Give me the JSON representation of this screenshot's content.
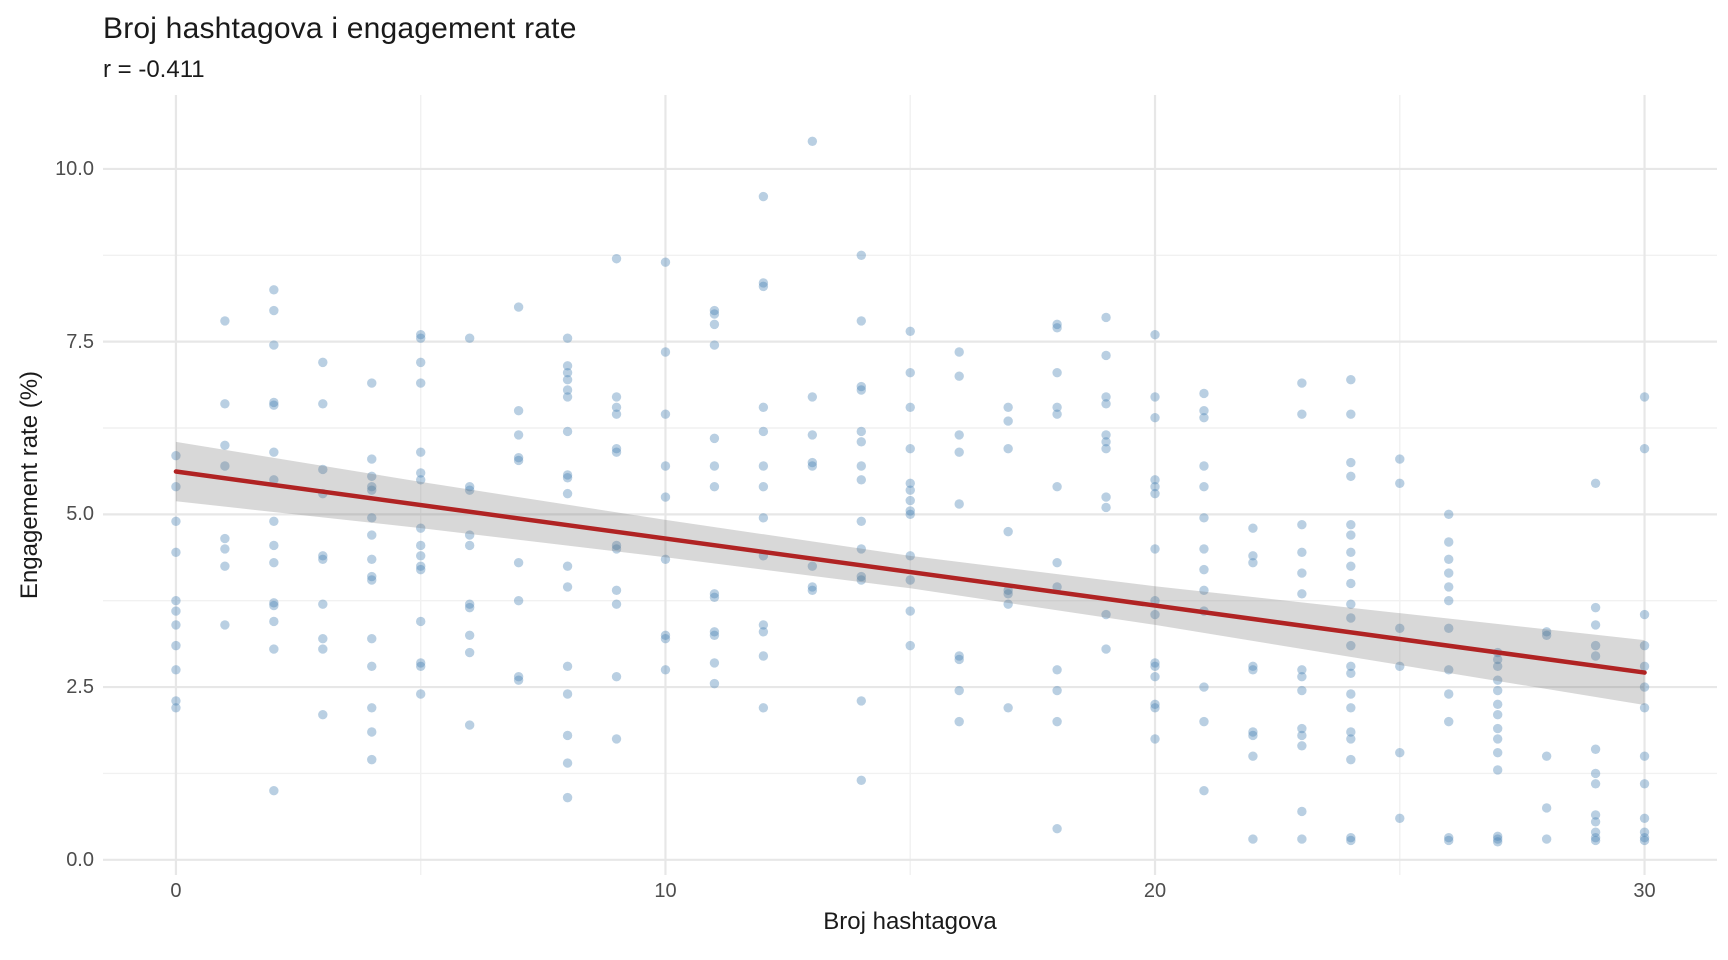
{
  "chart_data": {
    "type": "scatter",
    "title": "Broj hashtagova i engagement rate",
    "subtitle": "r = -0.411",
    "xlabel": "Broj hashtagova",
    "ylabel": "Engagement rate (%)",
    "correlation_r": -0.411,
    "legend": "none",
    "grid": true,
    "x_range": [
      -1.49,
      31.48
    ],
    "y_range": [
      -0.22,
      11.07
    ],
    "x_ticks": [
      {
        "v": 0,
        "label": "0"
      },
      {
        "v": 10,
        "label": "10"
      },
      {
        "v": 20,
        "label": "20"
      },
      {
        "v": 30,
        "label": "30"
      }
    ],
    "x_minor_ticks": [
      5,
      15,
      25
    ],
    "y_ticks": [
      {
        "v": 0,
        "label": "0.0"
      },
      {
        "v": 2.5,
        "label": "2.5"
      },
      {
        "v": 5,
        "label": "5.0"
      },
      {
        "v": 7.5,
        "label": "7.5"
      },
      {
        "v": 10,
        "label": "10.0"
      }
    ],
    "y_minor_ticks": [
      1.25,
      3.75,
      6.25,
      8.75
    ],
    "trend_line": {
      "x": [
        0,
        30
      ],
      "y": [
        5.62,
        2.71
      ]
    },
    "confidence_band": {
      "x": [
        0,
        5,
        10,
        15,
        20,
        25,
        30
      ],
      "upper": [
        6.05,
        5.47,
        4.92,
        4.4,
        3.96,
        3.57,
        3.18
      ],
      "lower": [
        5.19,
        4.8,
        4.38,
        3.93,
        3.4,
        2.82,
        2.24
      ]
    },
    "points": [
      [
        0,
        5.85
      ],
      [
        0,
        5.4
      ],
      [
        0,
        4.9
      ],
      [
        0,
        4.45
      ],
      [
        0,
        3.75
      ],
      [
        0,
        3.6
      ],
      [
        0,
        3.4
      ],
      [
        0,
        3.1
      ],
      [
        0,
        2.75
      ],
      [
        0,
        2.3
      ],
      [
        0,
        2.2
      ],
      [
        1,
        7.8
      ],
      [
        1,
        6.6
      ],
      [
        1,
        6.0
      ],
      [
        1,
        5.7
      ],
      [
        1,
        4.65
      ],
      [
        1,
        4.5
      ],
      [
        1,
        4.25
      ],
      [
        1,
        3.4
      ],
      [
        2,
        8.25
      ],
      [
        2,
        7.95
      ],
      [
        2,
        7.45
      ],
      [
        2,
        6.62
      ],
      [
        2,
        6.58
      ],
      [
        2,
        5.9
      ],
      [
        2,
        5.5
      ],
      [
        2,
        4.9
      ],
      [
        2,
        4.55
      ],
      [
        2,
        4.3
      ],
      [
        2,
        3.72
      ],
      [
        2,
        3.68
      ],
      [
        2,
        3.45
      ],
      [
        2,
        3.05
      ],
      [
        2,
        1.0
      ],
      [
        3,
        7.2
      ],
      [
        3,
        6.6
      ],
      [
        3,
        5.65
      ],
      [
        3,
        5.3
      ],
      [
        3,
        4.4
      ],
      [
        3,
        4.35
      ],
      [
        3,
        3.7
      ],
      [
        3,
        3.2
      ],
      [
        3,
        3.05
      ],
      [
        3,
        2.1
      ],
      [
        4,
        6.9
      ],
      [
        4,
        5.8
      ],
      [
        4,
        5.55
      ],
      [
        4,
        5.4
      ],
      [
        4,
        5.35
      ],
      [
        4,
        4.95
      ],
      [
        4,
        4.7
      ],
      [
        4,
        4.35
      ],
      [
        4,
        4.1
      ],
      [
        4,
        4.05
      ],
      [
        4,
        3.2
      ],
      [
        4,
        2.8
      ],
      [
        4,
        2.2
      ],
      [
        4,
        1.85
      ],
      [
        4,
        1.45
      ],
      [
        5,
        7.6
      ],
      [
        5,
        7.55
      ],
      [
        5,
        7.2
      ],
      [
        5,
        6.9
      ],
      [
        5,
        5.9
      ],
      [
        5,
        5.6
      ],
      [
        5,
        5.5
      ],
      [
        5,
        4.8
      ],
      [
        5,
        4.55
      ],
      [
        5,
        4.4
      ],
      [
        5,
        4.25
      ],
      [
        5,
        4.2
      ],
      [
        5,
        3.45
      ],
      [
        5,
        2.85
      ],
      [
        5,
        2.8
      ],
      [
        5,
        2.4
      ],
      [
        6,
        7.55
      ],
      [
        6,
        5.4
      ],
      [
        6,
        5.35
      ],
      [
        6,
        4.7
      ],
      [
        6,
        4.55
      ],
      [
        6,
        3.7
      ],
      [
        6,
        3.65
      ],
      [
        6,
        3.25
      ],
      [
        6,
        3.0
      ],
      [
        6,
        1.95
      ],
      [
        7,
        8.0
      ],
      [
        7,
        6.5
      ],
      [
        7,
        6.15
      ],
      [
        7,
        5.82
      ],
      [
        7,
        5.78
      ],
      [
        7,
        4.3
      ],
      [
        7,
        3.75
      ],
      [
        7,
        2.65
      ],
      [
        7,
        2.6
      ],
      [
        8,
        7.55
      ],
      [
        8,
        7.15
      ],
      [
        8,
        7.05
      ],
      [
        8,
        6.95
      ],
      [
        8,
        6.8
      ],
      [
        8,
        6.7
      ],
      [
        8,
        6.2
      ],
      [
        8,
        5.57
      ],
      [
        8,
        5.53
      ],
      [
        8,
        5.3
      ],
      [
        8,
        4.25
      ],
      [
        8,
        3.95
      ],
      [
        8,
        2.8
      ],
      [
        8,
        2.4
      ],
      [
        8,
        1.8
      ],
      [
        8,
        1.4
      ],
      [
        8,
        0.9
      ],
      [
        9,
        8.7
      ],
      [
        9,
        6.7
      ],
      [
        9,
        6.55
      ],
      [
        9,
        6.45
      ],
      [
        9,
        5.95
      ],
      [
        9,
        5.9
      ],
      [
        9,
        4.55
      ],
      [
        9,
        4.5
      ],
      [
        9,
        3.9
      ],
      [
        9,
        3.7
      ],
      [
        9,
        2.65
      ],
      [
        9,
        1.75
      ],
      [
        10,
        8.65
      ],
      [
        10,
        7.35
      ],
      [
        10,
        6.45
      ],
      [
        10,
        5.7
      ],
      [
        10,
        5.25
      ],
      [
        10,
        4.35
      ],
      [
        10,
        3.25
      ],
      [
        10,
        3.2
      ],
      [
        10,
        2.75
      ],
      [
        11,
        7.95
      ],
      [
        11,
        7.9
      ],
      [
        11,
        7.75
      ],
      [
        11,
        7.45
      ],
      [
        11,
        6.1
      ],
      [
        11,
        5.7
      ],
      [
        11,
        5.4
      ],
      [
        11,
        3.85
      ],
      [
        11,
        3.8
      ],
      [
        11,
        3.3
      ],
      [
        11,
        3.25
      ],
      [
        11,
        2.85
      ],
      [
        11,
        2.55
      ],
      [
        12,
        9.6
      ],
      [
        12,
        8.35
      ],
      [
        12,
        8.3
      ],
      [
        12,
        6.55
      ],
      [
        12,
        6.2
      ],
      [
        12,
        5.7
      ],
      [
        12,
        5.4
      ],
      [
        12,
        4.95
      ],
      [
        12,
        4.4
      ],
      [
        12,
        3.4
      ],
      [
        12,
        3.3
      ],
      [
        12,
        2.95
      ],
      [
        12,
        2.2
      ],
      [
        13,
        10.4
      ],
      [
        13,
        6.7
      ],
      [
        13,
        6.15
      ],
      [
        13,
        5.75
      ],
      [
        13,
        5.7
      ],
      [
        13,
        4.25
      ],
      [
        13,
        3.95
      ],
      [
        13,
        3.9
      ],
      [
        14,
        8.75
      ],
      [
        14,
        7.8
      ],
      [
        14,
        6.85
      ],
      [
        14,
        6.8
      ],
      [
        14,
        6.2
      ],
      [
        14,
        6.05
      ],
      [
        14,
        5.7
      ],
      [
        14,
        5.5
      ],
      [
        14,
        4.9
      ],
      [
        14,
        4.5
      ],
      [
        14,
        4.1
      ],
      [
        14,
        4.05
      ],
      [
        14,
        2.3
      ],
      [
        14,
        1.15
      ],
      [
        15,
        7.65
      ],
      [
        15,
        7.05
      ],
      [
        15,
        6.55
      ],
      [
        15,
        5.95
      ],
      [
        15,
        5.45
      ],
      [
        15,
        5.35
      ],
      [
        15,
        5.2
      ],
      [
        15,
        5.05
      ],
      [
        15,
        5.0
      ],
      [
        15,
        4.4
      ],
      [
        15,
        4.05
      ],
      [
        15,
        3.6
      ],
      [
        15,
        3.1
      ],
      [
        16,
        7.35
      ],
      [
        16,
        7.0
      ],
      [
        16,
        6.15
      ],
      [
        16,
        5.9
      ],
      [
        16,
        5.15
      ],
      [
        16,
        2.95
      ],
      [
        16,
        2.9
      ],
      [
        16,
        2.45
      ],
      [
        16,
        2.0
      ],
      [
        17,
        6.55
      ],
      [
        17,
        6.35
      ],
      [
        17,
        5.95
      ],
      [
        17,
        4.75
      ],
      [
        17,
        3.9
      ],
      [
        17,
        3.85
      ],
      [
        17,
        3.7
      ],
      [
        17,
        2.2
      ],
      [
        18,
        7.75
      ],
      [
        18,
        7.7
      ],
      [
        18,
        7.05
      ],
      [
        18,
        6.55
      ],
      [
        18,
        6.45
      ],
      [
        18,
        5.4
      ],
      [
        18,
        4.3
      ],
      [
        18,
        3.95
      ],
      [
        18,
        2.75
      ],
      [
        18,
        2.45
      ],
      [
        18,
        2.0
      ],
      [
        18,
        0.45
      ],
      [
        19,
        7.85
      ],
      [
        19,
        7.3
      ],
      [
        19,
        6.7
      ],
      [
        19,
        6.6
      ],
      [
        19,
        6.15
      ],
      [
        19,
        6.05
      ],
      [
        19,
        5.95
      ],
      [
        19,
        5.25
      ],
      [
        19,
        5.1
      ],
      [
        19,
        3.55
      ],
      [
        19,
        3.05
      ],
      [
        20,
        7.6
      ],
      [
        20,
        6.7
      ],
      [
        20,
        6.4
      ],
      [
        20,
        5.5
      ],
      [
        20,
        5.4
      ],
      [
        20,
        5.3
      ],
      [
        20,
        4.5
      ],
      [
        20,
        3.75
      ],
      [
        20,
        3.55
      ],
      [
        20,
        2.85
      ],
      [
        20,
        2.8
      ],
      [
        20,
        2.65
      ],
      [
        20,
        2.25
      ],
      [
        20,
        2.2
      ],
      [
        20,
        1.75
      ],
      [
        21,
        6.75
      ],
      [
        21,
        6.5
      ],
      [
        21,
        6.4
      ],
      [
        21,
        5.7
      ],
      [
        21,
        5.4
      ],
      [
        21,
        4.95
      ],
      [
        21,
        4.5
      ],
      [
        21,
        4.2
      ],
      [
        21,
        3.9
      ],
      [
        21,
        3.6
      ],
      [
        21,
        2.5
      ],
      [
        21,
        2.0
      ],
      [
        21,
        1.0
      ],
      [
        22,
        4.8
      ],
      [
        22,
        4.4
      ],
      [
        22,
        4.3
      ],
      [
        22,
        2.8
      ],
      [
        22,
        2.75
      ],
      [
        22,
        1.85
      ],
      [
        22,
        1.8
      ],
      [
        22,
        1.5
      ],
      [
        22,
        0.3
      ],
      [
        23,
        6.9
      ],
      [
        23,
        6.45
      ],
      [
        23,
        4.85
      ],
      [
        23,
        4.45
      ],
      [
        23,
        4.15
      ],
      [
        23,
        3.85
      ],
      [
        23,
        2.75
      ],
      [
        23,
        2.65
      ],
      [
        23,
        2.45
      ],
      [
        23,
        1.9
      ],
      [
        23,
        1.8
      ],
      [
        23,
        1.65
      ],
      [
        23,
        0.7
      ],
      [
        23,
        0.3
      ],
      [
        24,
        6.95
      ],
      [
        24,
        6.45
      ],
      [
        24,
        5.75
      ],
      [
        24,
        5.55
      ],
      [
        24,
        4.85
      ],
      [
        24,
        4.7
      ],
      [
        24,
        4.45
      ],
      [
        24,
        4.25
      ],
      [
        24,
        4.0
      ],
      [
        24,
        3.7
      ],
      [
        24,
        3.5
      ],
      [
        24,
        3.1
      ],
      [
        24,
        2.8
      ],
      [
        24,
        2.7
      ],
      [
        24,
        2.4
      ],
      [
        24,
        2.2
      ],
      [
        24,
        1.85
      ],
      [
        24,
        1.75
      ],
      [
        24,
        1.45
      ],
      [
        24,
        0.32
      ],
      [
        24,
        0.28
      ],
      [
        25,
        5.8
      ],
      [
        25,
        5.45
      ],
      [
        25,
        3.35
      ],
      [
        25,
        2.8
      ],
      [
        25,
        1.55
      ],
      [
        25,
        0.6
      ],
      [
        26,
        5.0
      ],
      [
        26,
        4.6
      ],
      [
        26,
        4.35
      ],
      [
        26,
        4.15
      ],
      [
        26,
        3.95
      ],
      [
        26,
        3.75
      ],
      [
        26,
        3.35
      ],
      [
        26,
        2.75
      ],
      [
        26,
        2.4
      ],
      [
        26,
        2.0
      ],
      [
        26,
        0.32
      ],
      [
        26,
        0.28
      ],
      [
        27,
        3.0
      ],
      [
        27,
        2.9
      ],
      [
        27,
        2.8
      ],
      [
        27,
        2.6
      ],
      [
        27,
        2.45
      ],
      [
        27,
        2.25
      ],
      [
        27,
        2.1
      ],
      [
        27,
        1.9
      ],
      [
        27,
        1.75
      ],
      [
        27,
        1.55
      ],
      [
        27,
        1.3
      ],
      [
        27,
        0.34
      ],
      [
        27,
        0.3
      ],
      [
        27,
        0.26
      ],
      [
        28,
        3.3
      ],
      [
        28,
        3.25
      ],
      [
        28,
        1.5
      ],
      [
        28,
        0.75
      ],
      [
        28,
        0.3
      ],
      [
        29,
        5.45
      ],
      [
        29,
        3.65
      ],
      [
        29,
        3.4
      ],
      [
        29,
        3.1
      ],
      [
        29,
        2.95
      ],
      [
        29,
        1.6
      ],
      [
        29,
        1.25
      ],
      [
        29,
        1.1
      ],
      [
        29,
        0.65
      ],
      [
        29,
        0.55
      ],
      [
        29,
        0.4
      ],
      [
        29,
        0.32
      ],
      [
        29,
        0.28
      ],
      [
        30,
        6.7
      ],
      [
        30,
        5.95
      ],
      [
        30,
        3.55
      ],
      [
        30,
        3.1
      ],
      [
        30,
        2.8
      ],
      [
        30,
        2.5
      ],
      [
        30,
        2.2
      ],
      [
        30,
        1.5
      ],
      [
        30,
        1.1
      ],
      [
        30,
        0.6
      ],
      [
        30,
        0.4
      ],
      [
        30,
        0.32
      ],
      [
        30,
        0.28
      ]
    ]
  },
  "colors": {
    "background": "#ffffff",
    "point_fill": "rgba(70,130,180,0.38)",
    "trend_line": "#b02323",
    "confidence_band": "rgba(110,110,110,0.27)",
    "grid_major": "#e7e7e7",
    "grid_minor": "#f1f1f1",
    "title_text": "#1a1a1a",
    "tick_text": "#4d4d4d"
  }
}
